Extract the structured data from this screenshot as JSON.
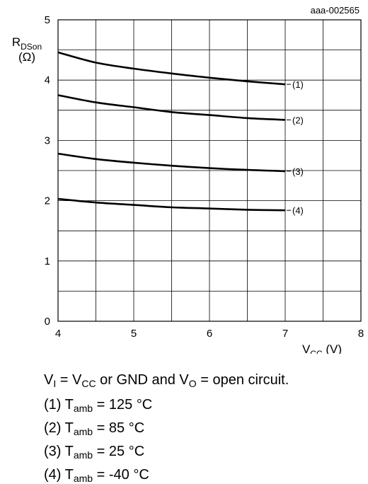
{
  "chart_data": {
    "type": "line",
    "figure_id": "aaa-002565",
    "ylabel_main": "R",
    "ylabel_sub": "DSon",
    "yunit": "(Ω)",
    "xlabel_main": "V",
    "xlabel_sub": "CC",
    "xunit": " (V)",
    "xlim": [
      4,
      8
    ],
    "ylim": [
      0,
      5
    ],
    "xticks": [
      4,
      5,
      6,
      7,
      8
    ],
    "yticks": [
      0,
      1,
      2,
      3,
      4,
      5
    ],
    "xgrid_step": 0.5,
    "ygrid_step": 0.5,
    "grid": true,
    "series": [
      {
        "name": "(1)",
        "x": [
          4.0,
          4.5,
          5.0,
          5.5,
          6.0,
          6.5,
          7.0
        ],
        "values": [
          4.46,
          4.29,
          4.19,
          4.11,
          4.04,
          3.98,
          3.93
        ]
      },
      {
        "name": "(2)",
        "x": [
          4.0,
          4.5,
          5.0,
          5.5,
          6.0,
          6.5,
          7.0
        ],
        "values": [
          3.75,
          3.63,
          3.55,
          3.47,
          3.42,
          3.37,
          3.34
        ]
      },
      {
        "name": "(3)",
        "x": [
          4.0,
          4.5,
          5.0,
          5.5,
          6.0,
          6.5,
          7.0
        ],
        "values": [
          2.78,
          2.69,
          2.63,
          2.58,
          2.54,
          2.51,
          2.49
        ]
      },
      {
        "name": "(4)",
        "x": [
          4.0,
          4.5,
          5.0,
          5.5,
          6.0,
          6.5,
          7.0
        ],
        "values": [
          2.03,
          1.97,
          1.93,
          1.89,
          1.87,
          1.85,
          1.84
        ]
      }
    ]
  },
  "caption": {
    "condition": {
      "v": "V",
      "i_sub": "I",
      "eq1": " = V",
      "cc_sub": "CC",
      "mid": " or GND and V",
      "o_sub": "O",
      "tail": " = open circuit."
    },
    "items": [
      {
        "prefix": "(1) T",
        "sub": "amb",
        "suffix": " = 125 °C"
      },
      {
        "prefix": "(2) T",
        "sub": "amb",
        "suffix": " = 85 °C"
      },
      {
        "prefix": "(3) T",
        "sub": "amb",
        "suffix": " = 25 °C"
      },
      {
        "prefix": "(4) T",
        "sub": "amb",
        "suffix": " = -40 °C"
      }
    ]
  }
}
